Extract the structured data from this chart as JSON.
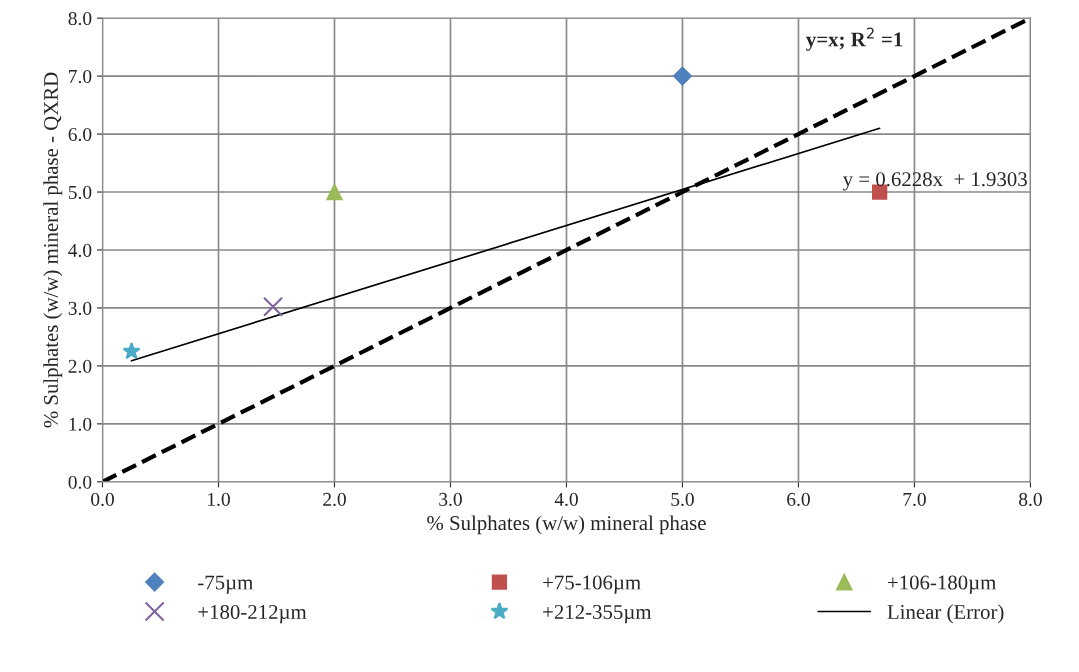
{
  "chart_data": {
    "type": "scatter",
    "xlabel": "% Sulphates (w/w) mineral phase",
    "ylabel": "% Sulphates (w/w) mineral phase - QXRD",
    "xlim": [
      0,
      8
    ],
    "ylim": [
      0,
      8
    ],
    "xticks": [
      {
        "value": 0,
        "label": "0.0"
      },
      {
        "value": 1,
        "label": "1.0"
      },
      {
        "value": 2,
        "label": "2.0"
      },
      {
        "value": 3,
        "label": "3.0"
      },
      {
        "value": 4,
        "label": "4.0"
      },
      {
        "value": 5,
        "label": "5.0"
      },
      {
        "value": 6,
        "label": "6.0"
      },
      {
        "value": 7,
        "label": "7.0"
      },
      {
        "value": 8,
        "label": "8.0"
      }
    ],
    "yticks": [
      {
        "value": 0,
        "label": "0.0"
      },
      {
        "value": 1,
        "label": "1.0"
      },
      {
        "value": 2,
        "label": "2.0"
      },
      {
        "value": 3,
        "label": "3.0"
      },
      {
        "value": 4,
        "label": "4.0"
      },
      {
        "value": 5,
        "label": "5.0"
      },
      {
        "value": 6,
        "label": "6.0"
      },
      {
        "value": 7,
        "label": "7.0"
      },
      {
        "value": 8,
        "label": "8.0"
      }
    ],
    "grid": true,
    "legend": "bottom",
    "series": [
      {
        "name": "-75µm",
        "color": "#4f81bd",
        "marker": "diamond",
        "x": [
          5.0
        ],
        "values": [
          7.0
        ]
      },
      {
        "name": "+75-106µm",
        "color": "#c0504d",
        "marker": "square",
        "x": [
          6.7
        ],
        "values": [
          5.0
        ]
      },
      {
        "name": "+106-180µm",
        "color": "#9bbb59",
        "marker": "triangle",
        "x": [
          2.0
        ],
        "values": [
          5.0
        ]
      },
      {
        "name": "+180-212µm",
        "color": "#8064a2",
        "marker": "cross",
        "x": [
          1.47
        ],
        "values": [
          3.02
        ]
      },
      {
        "name": "+212-355µm",
        "color": "#4bacc6",
        "marker": "star",
        "x": [
          0.25
        ],
        "values": [
          2.25
        ]
      },
      {
        "name": "Linear (Error)",
        "type": "line",
        "color": "#000000",
        "line_style": "solid",
        "x": [
          0.25,
          6.7
        ],
        "values": [
          2.09,
          6.1
        ]
      },
      {
        "type": "line",
        "color": "#000000",
        "line_style": "dashed",
        "x": [
          0,
          8
        ],
        "values": [
          0,
          8
        ]
      }
    ],
    "annotations": [
      {
        "text": "y=x; R$^{2}$ =1",
        "x": 7.0,
        "y": 7.0
      },
      {
        "text": "y = 0.6228x  + 1.9303",
        "x": 6.7,
        "y": 6.1
      }
    ]
  }
}
